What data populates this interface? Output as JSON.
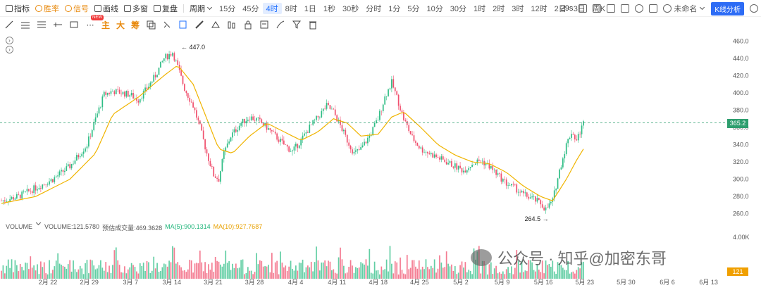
{
  "toolbar": {
    "left_items": [
      {
        "label": "指标",
        "icon": "chart-indicator-icon",
        "style": "normal"
      },
      {
        "label": "胜率",
        "icon": "win-rate-icon",
        "style": "orange"
      },
      {
        "label": "信号",
        "icon": "signal-icon",
        "style": "orange"
      },
      {
        "label": "画线",
        "icon": "draw-line-icon",
        "style": "normal"
      },
      {
        "label": "多窗",
        "icon": "multi-window-icon",
        "style": "normal"
      },
      {
        "label": "复盘",
        "icon": "replay-icon",
        "style": "normal"
      }
    ],
    "period_label": "周期",
    "periods": [
      "15分",
      "45分",
      "4时",
      "8时",
      "1日",
      "1秒",
      "30秒",
      "分时",
      "1分",
      "5分",
      "10分",
      "30分",
      "1时",
      "2时",
      "3时",
      "12时",
      "2日",
      "3日",
      "周K"
    ],
    "active_period": "4时",
    "right": {
      "countdown": "29s",
      "cloud_label": "未命名",
      "analysis_button": "K线分析"
    }
  },
  "drawing_tools": {
    "new_badge": "NEW",
    "text_tools": [
      "主",
      "大",
      "筹"
    ]
  },
  "price_axis": {
    "ticks": [
      "460.0",
      "440.0",
      "420.0",
      "400.0",
      "380.0",
      "360.0",
      "340.0",
      "320.0",
      "300.0",
      "280.0",
      "260.0"
    ],
    "current_price": "365.2"
  },
  "annotations": {
    "high": "447.0",
    "low": "264.5"
  },
  "volume": {
    "legend_title": "VOLUME",
    "volume_label": "VOLUME:121.5780",
    "est_label": "预估成交量:469.3628",
    "ma5_label": "MA(5):900.1314",
    "ma10_label": "MA(10):927.7687",
    "axis_tick": "4.00K",
    "current_value": "121"
  },
  "time_axis": {
    "labels": [
      "2月 22",
      "2月 29",
      "3月 7",
      "3月 14",
      "3月 21",
      "3月 28",
      "4月 4",
      "4月 11",
      "4月 18",
      "4月 25",
      "5月 2",
      "5月 9",
      "5月 16",
      "5月 23",
      "5月 30",
      "6月 6",
      "6月 13"
    ]
  },
  "watermark": "公众号 · 知乎@加密东哥",
  "colors": {
    "up": "#2ebd85",
    "down": "#f0506e",
    "ma": "#f0b400",
    "accent": "#1e6fff",
    "price_tag": "#2e9e6e"
  },
  "chart_data": {
    "type": "candlestick",
    "ylim": [
      250,
      470
    ],
    "x_labels": [
      "2月 22",
      "2月 29",
      "3月 7",
      "3月 14",
      "3月 21",
      "3月 28",
      "4月 4",
      "4月 11",
      "4月 18",
      "4月 25",
      "5月 2",
      "5月 9",
      "5月 16",
      "5月 23",
      "5月 30",
      "6月 6",
      "6月 13"
    ],
    "close_path": [
      [
        0,
        275
      ],
      [
        10,
        280
      ],
      [
        20,
        290
      ],
      [
        30,
        300
      ],
      [
        40,
        315
      ],
      [
        50,
        340
      ],
      [
        55,
        370
      ],
      [
        60,
        398
      ],
      [
        65,
        402
      ],
      [
        70,
        400
      ],
      [
        75,
        398
      ],
      [
        80,
        392
      ],
      [
        85,
        405
      ],
      [
        90,
        420
      ],
      [
        95,
        440
      ],
      [
        100,
        447
      ],
      [
        103,
        430
      ],
      [
        107,
        405
      ],
      [
        112,
        385
      ],
      [
        116,
        360
      ],
      [
        120,
        330
      ],
      [
        124,
        305
      ],
      [
        127,
        300
      ],
      [
        130,
        330
      ],
      [
        134,
        350
      ],
      [
        140,
        365
      ],
      [
        145,
        372
      ],
      [
        150,
        368
      ],
      [
        155,
        360
      ],
      [
        160,
        350
      ],
      [
        165,
        340
      ],
      [
        170,
        332
      ],
      [
        175,
        345
      ],
      [
        180,
        360
      ],
      [
        185,
        372
      ],
      [
        190,
        385
      ],
      [
        194,
        378
      ],
      [
        198,
        362
      ],
      [
        202,
        345
      ],
      [
        206,
        330
      ],
      [
        210,
        335
      ],
      [
        215,
        350
      ],
      [
        220,
        370
      ],
      [
        224,
        395
      ],
      [
        228,
        412
      ],
      [
        231,
        395
      ],
      [
        235,
        370
      ],
      [
        240,
        348
      ],
      [
        245,
        335
      ],
      [
        250,
        330
      ],
      [
        255,
        325
      ],
      [
        260,
        320
      ],
      [
        265,
        315
      ],
      [
        270,
        310
      ],
      [
        275,
        318
      ],
      [
        280,
        322
      ],
      [
        285,
        315
      ],
      [
        290,
        305
      ],
      [
        295,
        295
      ],
      [
        300,
        290
      ],
      [
        305,
        282
      ],
      [
        310,
        278
      ],
      [
        315,
        272
      ],
      [
        318,
        265
      ],
      [
        322,
        275
      ],
      [
        326,
        310
      ],
      [
        330,
        340
      ],
      [
        333,
        355
      ],
      [
        336,
        345
      ],
      [
        340,
        365
      ]
    ],
    "ma_path": [
      [
        0,
        272
      ],
      [
        20,
        280
      ],
      [
        40,
        300
      ],
      [
        55,
        330
      ],
      [
        65,
        375
      ],
      [
        80,
        395
      ],
      [
        95,
        420
      ],
      [
        103,
        432
      ],
      [
        112,
        410
      ],
      [
        120,
        370
      ],
      [
        127,
        335
      ],
      [
        135,
        330
      ],
      [
        145,
        350
      ],
      [
        155,
        365
      ],
      [
        165,
        355
      ],
      [
        175,
        345
      ],
      [
        185,
        355
      ],
      [
        194,
        370
      ],
      [
        202,
        365
      ],
      [
        210,
        350
      ],
      [
        220,
        352
      ],
      [
        228,
        372
      ],
      [
        235,
        378
      ],
      [
        245,
        360
      ],
      [
        255,
        340
      ],
      [
        265,
        328
      ],
      [
        275,
        320
      ],
      [
        285,
        318
      ],
      [
        295,
        308
      ],
      [
        305,
        292
      ],
      [
        315,
        280
      ],
      [
        322,
        275
      ],
      [
        330,
        300
      ],
      [
        336,
        322
      ],
      [
        340,
        335
      ]
    ],
    "current_price": 365.2,
    "high": 447.0,
    "low": 264.5
  }
}
